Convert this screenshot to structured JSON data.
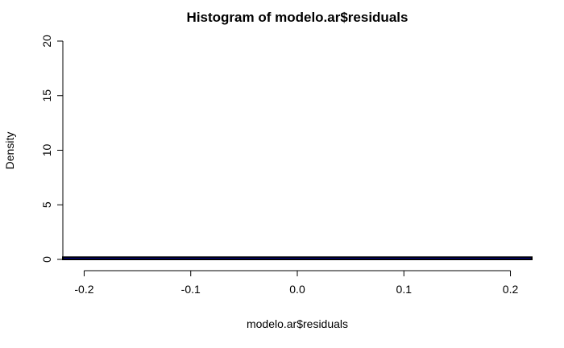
{
  "chart_data": {
    "type": "bar",
    "title": "Histogram of modelo.ar$residuals",
    "xlabel": "modelo.ar$residuals",
    "ylabel": "Density",
    "xlim": [
      -0.22,
      0.22
    ],
    "ylim": [
      0,
      20
    ],
    "x_ticks": [
      -0.2,
      -0.1,
      0.0,
      0.1,
      0.2
    ],
    "x_tick_labels": [
      "-0.2",
      "-0.1",
      "0.0",
      "0.1",
      "0.2"
    ],
    "y_ticks": [
      0,
      5,
      10,
      15,
      20
    ],
    "y_tick_labels": [
      "0",
      "5",
      "10",
      "15",
      "20"
    ],
    "bins": [
      {
        "x0": -0.22,
        "x1": 0.22,
        "density": 0.2
      }
    ],
    "bar_color": "#0000cc",
    "border_color": "#000000",
    "grid": false
  }
}
